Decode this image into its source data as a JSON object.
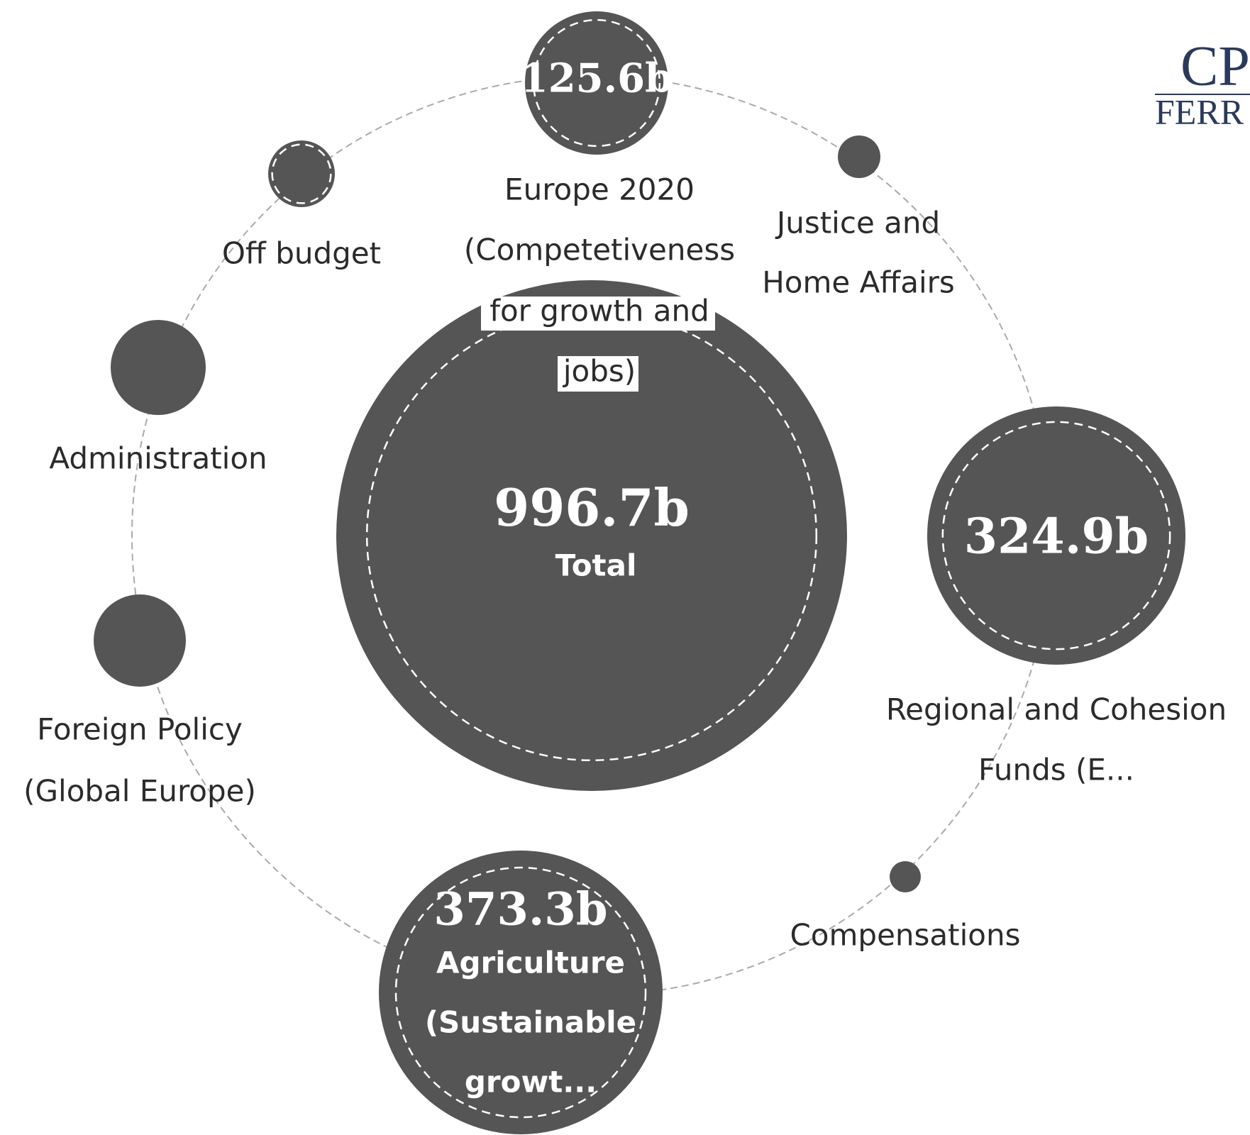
{
  "logo": {
    "top": "CP",
    "bottom": "FERR"
  },
  "nodes": [
    {
      "value": "996.7b",
      "label": [
        "Total"
      ]
    },
    {
      "value": "125.6b",
      "label": [
        "Europe 2020",
        "(Competetiveness",
        "for growth and",
        "jobs)"
      ]
    },
    {
      "label": [
        "Justice and",
        "Home Affairs"
      ]
    },
    {
      "value": "324.9b",
      "label": [
        "Regional and Cohesion",
        "Funds (E..."
      ]
    },
    {
      "label": [
        "Compensations"
      ]
    },
    {
      "value": "373.3b",
      "label": [
        "Agriculture",
        "(Sustainable",
        "growt..."
      ]
    },
    {
      "label": [
        "Foreign Policy",
        "(Global Europe)"
      ]
    },
    {
      "label": [
        "Administration"
      ]
    },
    {
      "label": [
        "Off budget"
      ]
    }
  ]
}
